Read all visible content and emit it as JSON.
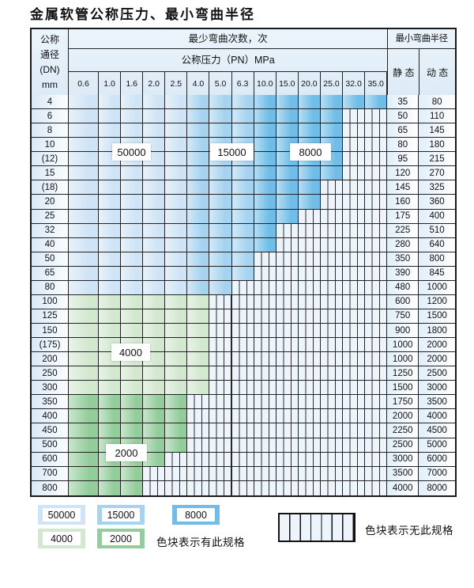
{
  "title": "金属软管公称压力、最小弯曲半径",
  "table": {
    "header": {
      "dn_lines": [
        "公称",
        "通径",
        "(DN)",
        "mm"
      ],
      "cycles_title": "最少弯曲次数，次",
      "pressure_title": "公称压力（PN）MPa",
      "pressures": [
        "0.6",
        "1.0",
        "1.6",
        "2.0",
        "2.5",
        "4.0",
        "5.0",
        "6.3",
        "10.0",
        "15.0",
        "20.0",
        "25.0",
        "32.0",
        "35.0"
      ],
      "radius_title": "最小弯曲半径",
      "static_label": "静 态",
      "dynamic_label": "动 态"
    },
    "rows": [
      {
        "dn": "4",
        "static": "35",
        "dynamic": "80",
        "band": "blue",
        "last": 13
      },
      {
        "dn": "6",
        "static": "50",
        "dynamic": "110",
        "band": "blue",
        "last": 11
      },
      {
        "dn": "8",
        "static": "65",
        "dynamic": "145",
        "band": "blue",
        "last": 11
      },
      {
        "dn": "10",
        "static": "80",
        "dynamic": "180",
        "band": "blue",
        "last": 11
      },
      {
        "dn": "(12)",
        "static": "95",
        "dynamic": "215",
        "band": "blue",
        "last": 11
      },
      {
        "dn": "15",
        "static": "120",
        "dynamic": "270",
        "band": "blue",
        "last": 11
      },
      {
        "dn": "(18)",
        "static": "145",
        "dynamic": "325",
        "band": "blue",
        "last": 10
      },
      {
        "dn": "20",
        "static": "160",
        "dynamic": "360",
        "band": "blue",
        "last": 10
      },
      {
        "dn": "25",
        "static": "175",
        "dynamic": "400",
        "band": "blue",
        "last": 9
      },
      {
        "dn": "32",
        "static": "225",
        "dynamic": "510",
        "band": "blue",
        "last": 8
      },
      {
        "dn": "40",
        "static": "280",
        "dynamic": "640",
        "band": "blue",
        "last": 8
      },
      {
        "dn": "50",
        "static": "350",
        "dynamic": "800",
        "band": "blue",
        "last": 7
      },
      {
        "dn": "65",
        "static": "390",
        "dynamic": "845",
        "band": "blue",
        "last": 7
      },
      {
        "dn": "80",
        "static": "480",
        "dynamic": "1000",
        "band": "blue",
        "last": 6
      },
      {
        "dn": "100",
        "static": "600",
        "dynamic": "1200",
        "band": "g4",
        "last": 5
      },
      {
        "dn": "125",
        "static": "750",
        "dynamic": "1500",
        "band": "g4",
        "last": 5
      },
      {
        "dn": "150",
        "static": "900",
        "dynamic": "1800",
        "band": "g4",
        "last": 5
      },
      {
        "dn": "(175)",
        "static": "1000",
        "dynamic": "2000",
        "band": "g4",
        "last": 5
      },
      {
        "dn": "200",
        "static": "1000",
        "dynamic": "2000",
        "band": "g4",
        "last": 5
      },
      {
        "dn": "250",
        "static": "1250",
        "dynamic": "2500",
        "band": "g4",
        "last": 5
      },
      {
        "dn": "300",
        "static": "1500",
        "dynamic": "3000",
        "band": "g4",
        "last": 5
      },
      {
        "dn": "350",
        "static": "1750",
        "dynamic": "3500",
        "band": "g2",
        "last": 4
      },
      {
        "dn": "400",
        "static": "2000",
        "dynamic": "4000",
        "band": "g2",
        "last": 4
      },
      {
        "dn": "450",
        "static": "2250",
        "dynamic": "4500",
        "band": "g2",
        "last": 4
      },
      {
        "dn": "500",
        "static": "2500",
        "dynamic": "5000",
        "band": "g2",
        "last": 4
      },
      {
        "dn": "600",
        "static": "3000",
        "dynamic": "6000",
        "band": "g2",
        "last": 3
      },
      {
        "dn": "700",
        "static": "3500",
        "dynamic": "7000",
        "band": "g2",
        "last": 2
      },
      {
        "dn": "800",
        "static": "4000",
        "dynamic": "8000",
        "band": "g2",
        "last": 2
      }
    ]
  },
  "overlays": {
    "cycles_50000": "50000",
    "cycles_15000": "15000",
    "cycles_8000": "8000",
    "cycles_4000": "4000",
    "cycles_2000": "2000"
  },
  "legend": {
    "items": [
      {
        "value": "50000",
        "color": "#cfe4f6"
      },
      {
        "value": "15000",
        "color": "#a6d3f0"
      },
      {
        "value": "8000",
        "color": "#6fbde8"
      },
      {
        "value": "4000",
        "color": "#d2e8cf"
      },
      {
        "value": "2000",
        "color": "#93cd9b"
      }
    ],
    "has_spec_text": "色块表示有此规格",
    "no_spec_text": "色块表示无此规格"
  },
  "colors": {
    "band_50000": "#cfe4f6",
    "band_15000": "#a6d3f0",
    "band_8000": "#6fbde8",
    "band_4000": "#d2e8cf",
    "band_2000": "#93cd9b",
    "hatch_bg": "#eef4fb",
    "grid_line": "#222222"
  }
}
